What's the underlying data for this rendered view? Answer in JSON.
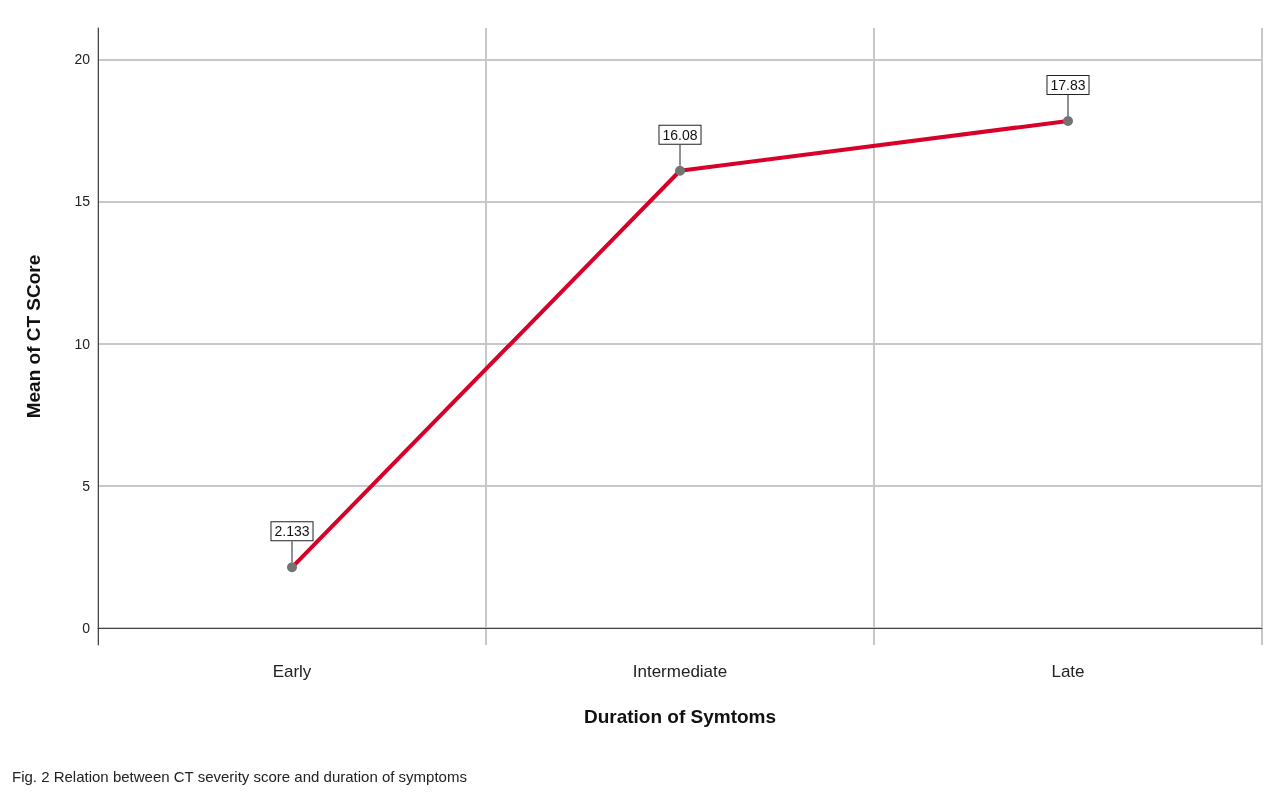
{
  "chart_data": {
    "type": "line",
    "xlabel": "Duration of Symtoms",
    "ylabel": "Mean of CT SCore",
    "categories": [
      "Early",
      "Intermediate",
      "Late"
    ],
    "series": [
      {
        "color": "#d6002a",
        "values": [
          2.133,
          16.08,
          17.83
        ]
      }
    ],
    "ylim": [
      -0.6,
      21.1
    ],
    "yticks": [
      0,
      5,
      10,
      15,
      20
    ],
    "grid": true,
    "marker": "circle",
    "line_style": "solid",
    "data_labels": true,
    "annotations": [
      "Fig. 2 Relation between CT severity score and duration of symptoms"
    ]
  }
}
